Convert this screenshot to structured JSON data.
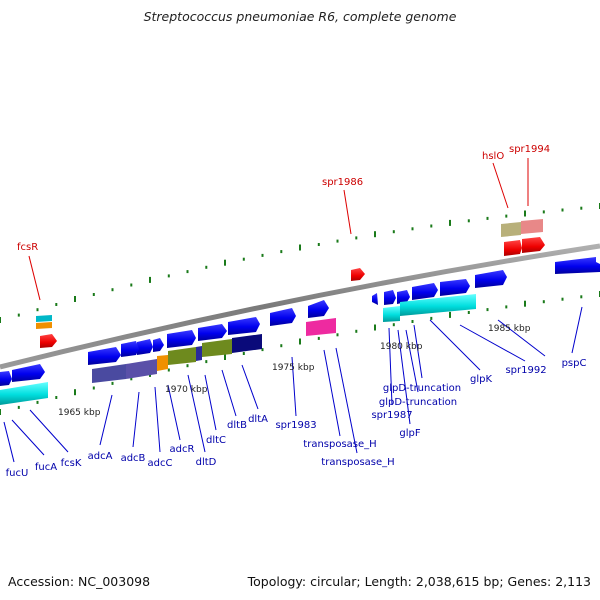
{
  "title": "Streptococcus pneumoniae R6, complete genome",
  "footer": {
    "accession": "Accession: NC_003098",
    "topology": "Topology: circular; Length: 2,038,615 bp; Genes: 2,113"
  },
  "colors": {
    "backbone": "#808080",
    "gene_forward": "#0000ff",
    "label_blue": "#0000aa",
    "label_red": "#cc0000",
    "tick": "#1a7a1a"
  },
  "scale_labels": [
    "1965 kbp",
    "1970 kbp",
    "1975 kbp",
    "1980 kbp",
    "1985 kbp"
  ],
  "gene_labels": [
    "fucU",
    "fucA",
    "fcsK",
    "adcA",
    "adcB",
    "adcC",
    "adcR",
    "dltD",
    "dltC",
    "dltB",
    "dltA",
    "spr1983",
    "transposase_H",
    "transposase_H",
    "spr1987",
    "glpF",
    "glpD-truncation",
    "glpD-truncation",
    "glpK",
    "spr1992",
    "pspC"
  ],
  "red_labels": [
    "fcsR",
    "spr1986",
    "hslO",
    "spr1994"
  ]
}
